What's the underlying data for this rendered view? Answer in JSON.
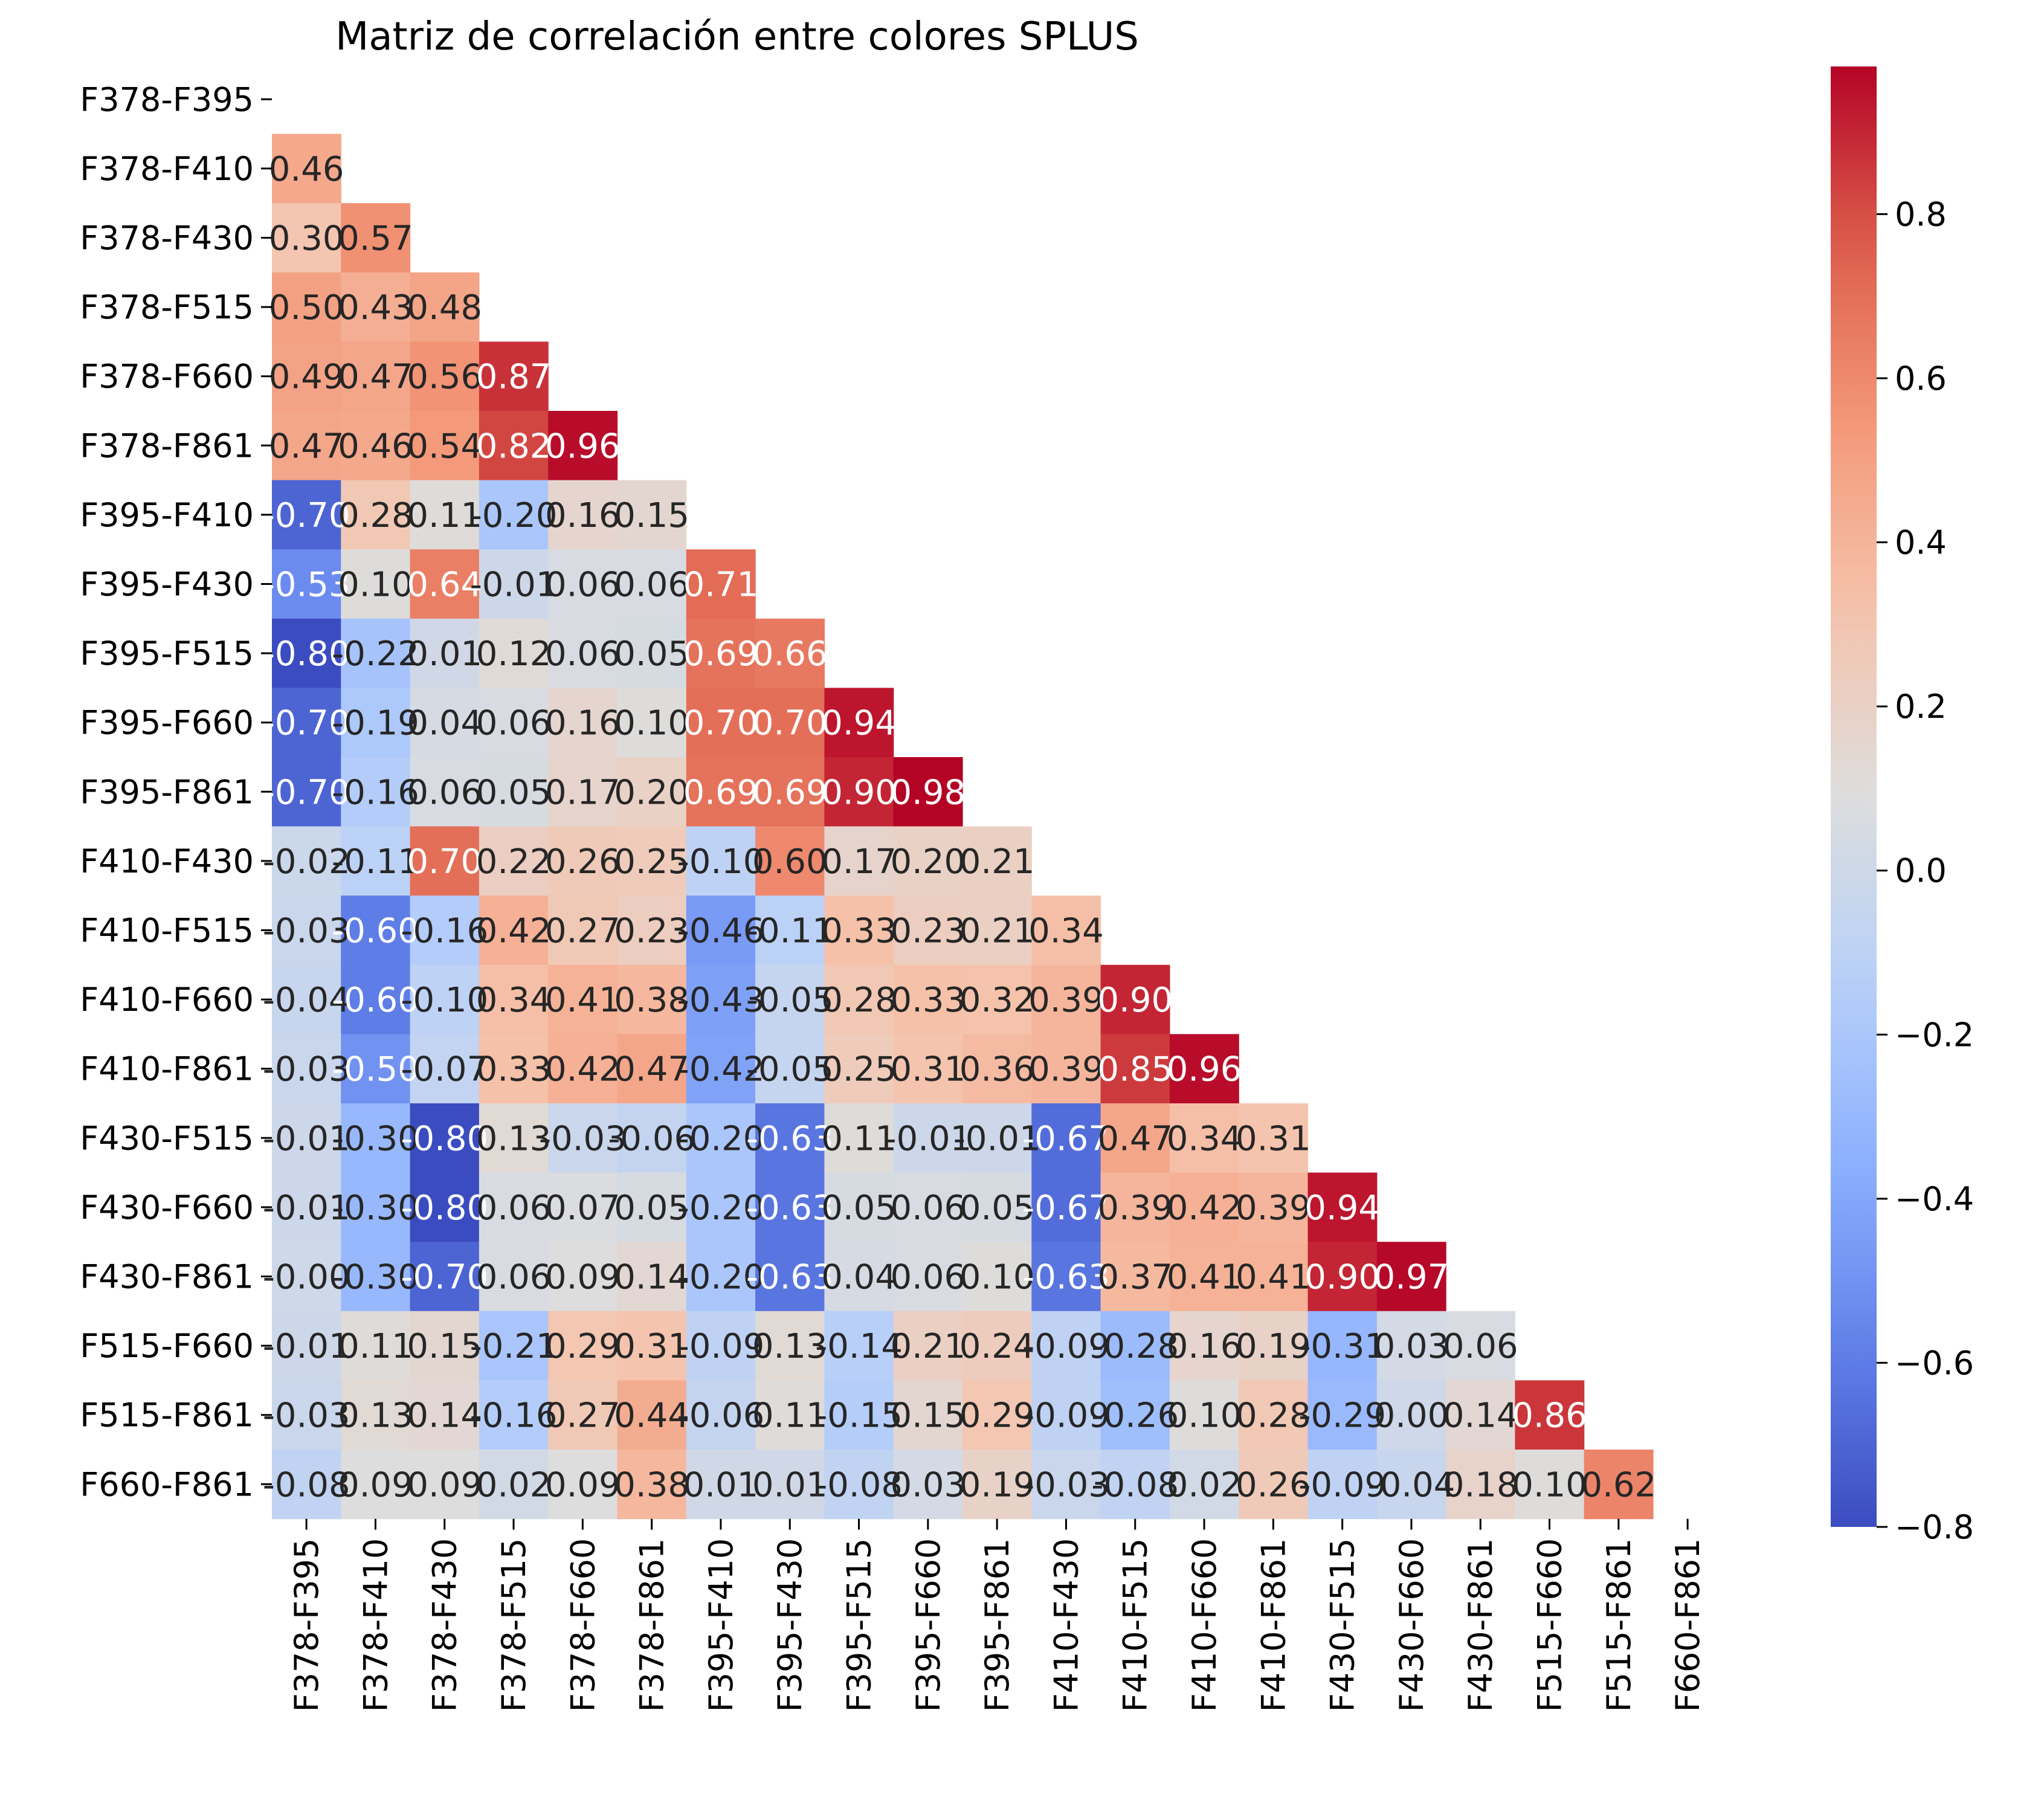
{
  "chart_data": {
    "type": "heatmap",
    "title": "Matriz de correlación entre colores SPLUS",
    "labels": [
      "F378-F395",
      "F378-F410",
      "F378-F430",
      "F378-F515",
      "F378-F660",
      "F378-F861",
      "F395-F410",
      "F395-F430",
      "F395-F515",
      "F395-F660",
      "F395-F861",
      "F410-F430",
      "F410-F515",
      "F410-F660",
      "F410-F861",
      "F430-F515",
      "F430-F660",
      "F430-F861",
      "F515-F660",
      "F515-F861",
      "F660-F861"
    ],
    "mask": "upper-triangle",
    "annot_format": "0.2f",
    "rows": [
      [],
      [
        0.46
      ],
      [
        0.3,
        0.57
      ],
      [
        0.5,
        0.43,
        0.48
      ],
      [
        0.49,
        0.47,
        0.56,
        0.87
      ],
      [
        0.47,
        0.46,
        0.54,
        0.82,
        0.96
      ],
      [
        -0.7,
        0.28,
        0.11,
        -0.2,
        0.16,
        0.15
      ],
      [
        -0.53,
        0.1,
        0.64,
        -0.01,
        0.06,
        0.06,
        0.71
      ],
      [
        -0.8,
        -0.22,
        0.01,
        0.12,
        0.06,
        0.05,
        0.69,
        0.66
      ],
      [
        -0.7,
        -0.19,
        0.04,
        0.06,
        0.16,
        0.1,
        0.7,
        0.7,
        0.94
      ],
      [
        -0.7,
        -0.16,
        0.06,
        0.05,
        0.17,
        0.2,
        0.69,
        0.69,
        0.9,
        0.98
      ],
      [
        -0.02,
        -0.11,
        0.7,
        0.22,
        0.26,
        0.25,
        -0.1,
        0.6,
        0.17,
        0.2,
        0.21
      ],
      [
        -0.03,
        -0.6,
        -0.16,
        0.42,
        0.27,
        0.23,
        -0.46,
        -0.11,
        0.33,
        0.23,
        0.21,
        0.34
      ],
      [
        -0.04,
        -0.6,
        -0.1,
        0.34,
        0.41,
        0.38,
        -0.43,
        -0.05,
        0.28,
        0.33,
        0.32,
        0.39,
        0.9
      ],
      [
        -0.03,
        -0.5,
        -0.07,
        0.33,
        0.42,
        0.47,
        -0.42,
        -0.05,
        0.25,
        0.31,
        0.36,
        0.39,
        0.85,
        0.96
      ],
      [
        -0.01,
        -0.3,
        -0.8,
        0.13,
        -0.03,
        -0.06,
        -0.2,
        -0.63,
        0.11,
        -0.01,
        -0.01,
        -0.67,
        0.47,
        0.34,
        0.31
      ],
      [
        -0.01,
        -0.3,
        -0.8,
        0.06,
        0.07,
        0.05,
        -0.2,
        -0.63,
        0.05,
        0.06,
        0.05,
        -0.67,
        0.39,
        0.42,
        0.39,
        0.94
      ],
      [
        -0.0,
        -0.3,
        -0.7,
        0.06,
        0.09,
        0.14,
        -0.2,
        -0.63,
        0.04,
        0.06,
        0.1,
        -0.63,
        0.37,
        0.41,
        0.41,
        0.9,
        0.97
      ],
      [
        -0.01,
        0.11,
        0.15,
        -0.21,
        0.29,
        0.31,
        -0.09,
        0.13,
        -0.14,
        0.21,
        0.24,
        -0.09,
        -0.28,
        0.16,
        0.19,
        -0.31,
        0.03,
        0.06
      ],
      [
        -0.03,
        0.13,
        0.14,
        -0.16,
        0.27,
        0.44,
        -0.06,
        0.11,
        -0.15,
        0.15,
        0.29,
        -0.09,
        -0.26,
        0.1,
        0.28,
        -0.29,
        0.0,
        0.14,
        0.86
      ],
      [
        -0.08,
        0.09,
        0.09,
        0.02,
        0.09,
        0.38,
        0.01,
        0.01,
        -0.08,
        0.03,
        0.19,
        -0.03,
        -0.08,
        0.02,
        0.26,
        -0.09,
        -0.04,
        0.18,
        0.1,
        0.62
      ]
    ],
    "colorbar": {
      "colormap": "coolwarm",
      "vmin": -0.8,
      "vmax": 0.98,
      "ticks": [
        0.8,
        0.6,
        0.4,
        0.2,
        0.0,
        -0.2,
        -0.4,
        -0.6,
        -0.8
      ],
      "tick_labels": [
        "0.8",
        "0.6",
        "0.4",
        "0.2",
        "0.0",
        "−0.2",
        "−0.4",
        "−0.6",
        "−0.8"
      ]
    }
  }
}
